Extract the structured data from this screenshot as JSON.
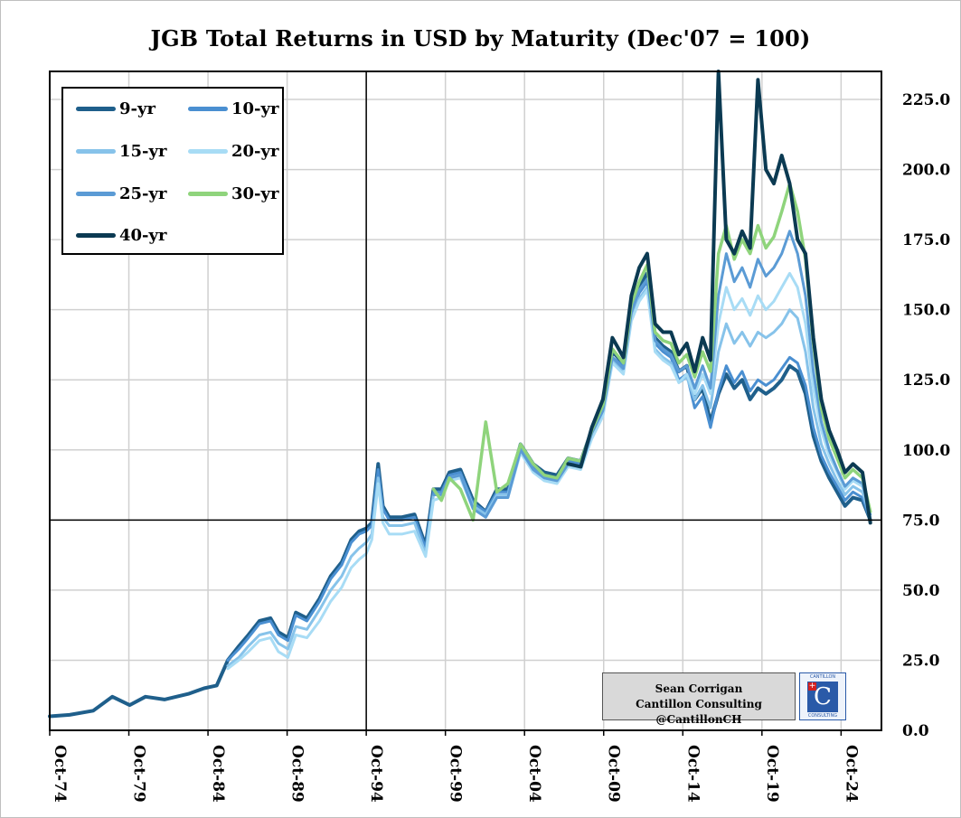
{
  "chart_data": {
    "type": "line",
    "title": "JGB Total Returns in USD by Maturity (Dec'07 = 100)",
    "xlabel": "",
    "ylabel": "",
    "ylim": [
      0,
      235
    ],
    "x_tick_labels": [
      "Oct-74",
      "Oct-79",
      "Oct-84",
      "Oct-89",
      "Oct-94",
      "Oct-99",
      "Oct-04",
      "Oct-09",
      "Oct-14",
      "Oct-19",
      "Oct-24"
    ],
    "x_tick_years": [
      1974.75,
      1979.75,
      1984.75,
      1989.75,
      1994.75,
      1999.75,
      2004.75,
      2009.75,
      2014.75,
      2019.75,
      2024.75
    ],
    "x_range": [
      1974.75,
      2027.3
    ],
    "y_ticks": [
      "0.0",
      "25.0",
      "50.0",
      "75.0",
      "100.0",
      "125.0",
      "150.0",
      "175.0",
      "200.0",
      "225.0"
    ],
    "y_tick_values": [
      0,
      25,
      50,
      75,
      100,
      125,
      150,
      175,
      200,
      225
    ],
    "grid": true,
    "reference_lines": {
      "x": 1994.75,
      "y": 75
    },
    "legend_position": "top-left",
    "series": [
      {
        "name": "9-yr",
        "color": "#1f5f8b",
        "width": 4,
        "x": [
          1974.75,
          1976,
          1977.5,
          1978.7,
          1979.8,
          1980.8,
          1982,
          1983.5,
          1984.5,
          1985.3,
          1986,
          1986.7,
          1987.3,
          1988,
          1988.7,
          1989.2,
          1989.8,
          1990.3,
          1991,
          1991.8,
          1992.5,
          1993.2,
          1993.8,
          1994.3,
          1994.75,
          1995.1,
          1995.5,
          1995.8,
          1996.2,
          1997,
          1997.8,
          1998.5,
          1999,
          1999.5,
          2000,
          2000.7,
          2001.5,
          2002.3,
          2003,
          2003.7,
          2004.5,
          2005.3,
          2006,
          2006.8,
          2007.5,
          2008.3,
          2009,
          2009.7,
          2010.3,
          2011,
          2011.5,
          2012,
          2012.5,
          2013,
          2013.5,
          2014,
          2014.5,
          2015,
          2015.5,
          2016,
          2016.5,
          2017,
          2017.5,
          2018,
          2018.5,
          2019,
          2019.5,
          2020,
          2020.5,
          2021,
          2021.5,
          2022,
          2022.5,
          2023,
          2023.5,
          2024,
          2024.5,
          2025,
          2025.5,
          2026.1,
          2026.6
        ],
        "y": [
          5,
          5.5,
          7,
          12,
          9,
          12,
          11,
          13,
          15,
          16,
          25,
          30,
          34,
          39,
          40,
          35,
          33,
          42,
          40,
          47,
          55,
          60,
          68,
          71,
          72,
          74,
          95,
          80,
          76,
          76,
          77,
          66,
          86,
          86,
          92,
          93,
          82,
          78,
          86,
          86,
          102,
          95,
          92,
          91,
          97,
          96,
          107,
          115,
          135,
          131,
          150,
          158,
          163,
          140,
          137,
          135,
          128,
          130,
          118,
          122,
          110,
          120,
          127,
          122,
          125,
          118,
          122,
          120,
          122,
          125,
          130,
          128,
          120,
          105,
          96,
          90,
          85,
          80,
          83,
          82,
          75
        ]
      },
      {
        "name": "10-yr",
        "color": "#4a8fd1",
        "width": 3,
        "x": [
          1986,
          1986.7,
          1987.3,
          1988,
          1988.7,
          1989.2,
          1989.8,
          1990.3,
          1991,
          1991.8,
          1992.5,
          1993.2,
          1993.8,
          1994.3,
          1994.75,
          1995.1,
          1995.5,
          1995.8,
          1996.2,
          1997,
          1997.8,
          1998.5,
          1999,
          1999.5,
          2000,
          2000.7,
          2001.5,
          2002.3,
          2003,
          2003.7,
          2004.5,
          2005.3,
          2006,
          2006.8,
          2007.5,
          2008.3,
          2009,
          2009.7,
          2010.3,
          2011,
          2011.5,
          2012,
          2012.5,
          2013,
          2013.5,
          2014,
          2014.5,
          2015,
          2015.5,
          2016,
          2016.5,
          2017,
          2017.5,
          2018,
          2018.5,
          2019,
          2019.5,
          2020,
          2020.5,
          2021,
          2021.5,
          2022,
          2022.5,
          2023,
          2023.5,
          2024,
          2024.5,
          2025,
          2025.5,
          2026.1,
          2026.6
        ],
        "y": [
          25,
          29,
          33,
          38,
          39,
          34,
          32,
          41,
          39,
          46,
          54,
          59,
          67,
          70,
          71,
          73,
          93,
          79,
          75,
          75,
          76,
          65,
          85,
          85,
          91,
          92,
          81,
          78,
          85,
          85,
          101,
          94,
          91,
          90,
          96,
          95,
          106,
          114,
          133,
          130,
          149,
          156,
          160,
          138,
          135,
          133,
          125,
          127,
          115,
          119,
          108,
          121,
          130,
          124,
          128,
          121,
          125,
          123,
          125,
          129,
          133,
          131,
          123,
          108,
          98,
          92,
          87,
          82,
          85,
          83,
          75
        ]
      },
      {
        "name": "15-yr",
        "color": "#87c3ea",
        "width": 3,
        "x": [
          1986,
          1986.7,
          1987.3,
          1988,
          1988.7,
          1989.2,
          1989.8,
          1990.3,
          1991,
          1991.8,
          1992.5,
          1993.2,
          1993.8,
          1994.3,
          1994.75,
          1995.1,
          1995.5,
          1995.8,
          1996.2,
          1997,
          1997.8,
          1998.5,
          1999,
          1999.5,
          2000,
          2000.7,
          2001.5,
          2002.3,
          2003,
          2003.7,
          2004.5,
          2005.3,
          2006,
          2006.8,
          2007.5,
          2008.3,
          2009,
          2009.7,
          2010.3,
          2011,
          2011.5,
          2012,
          2012.5,
          2013,
          2013.5,
          2014,
          2014.5,
          2015,
          2015.5,
          2016,
          2016.5,
          2017,
          2017.5,
          2018,
          2018.5,
          2019,
          2019.5,
          2020,
          2020.5,
          2021,
          2021.5,
          2022,
          2022.5,
          2023,
          2023.5,
          2024,
          2024.5,
          2025,
          2025.5,
          2026.1,
          2026.6
        ],
        "y": [
          23,
          26,
          30,
          34,
          35,
          31,
          29,
          37,
          36,
          43,
          50,
          55,
          62,
          65,
          67,
          70,
          90,
          76,
          73,
          73,
          74,
          63,
          84,
          84,
          90,
          91,
          80,
          77,
          84,
          84,
          100,
          93,
          90,
          89,
          95,
          94,
          105,
          113,
          132,
          128,
          147,
          154,
          158,
          136,
          133,
          131,
          124,
          126,
          118,
          123,
          115,
          135,
          145,
          138,
          142,
          137,
          142,
          140,
          142,
          145,
          150,
          147,
          135,
          115,
          102,
          95,
          89,
          84,
          87,
          85,
          76
        ]
      },
      {
        "name": "20-yr",
        "color": "#a8dcf5",
        "width": 3,
        "x": [
          1986,
          1986.7,
          1987.3,
          1988,
          1988.7,
          1989.2,
          1989.8,
          1990.3,
          1991,
          1991.8,
          1992.5,
          1993.2,
          1993.8,
          1994.3,
          1994.75,
          1995.1,
          1995.5,
          1995.8,
          1996.2,
          1997,
          1997.8,
          1998.5,
          1999,
          1999.5,
          2000,
          2000.7,
          2001.5,
          2002.3,
          2003,
          2003.7,
          2004.5,
          2005.3,
          2006,
          2006.8,
          2007.5,
          2008.3,
          2009,
          2009.7,
          2010.3,
          2011,
          2011.5,
          2012,
          2012.5,
          2013,
          2013.5,
          2014,
          2014.5,
          2015,
          2015.5,
          2016,
          2016.5,
          2017,
          2017.5,
          2018,
          2018.5,
          2019,
          2019.5,
          2020,
          2020.5,
          2021,
          2021.5,
          2022,
          2022.5,
          2023,
          2023.5,
          2024,
          2024.5,
          2025,
          2025.5,
          2026.1,
          2026.6
        ],
        "y": [
          22,
          25,
          28,
          32,
          33,
          28,
          26,
          34,
          33,
          39,
          46,
          51,
          58,
          61,
          63,
          68,
          88,
          74,
          70,
          70,
          71,
          62,
          82,
          83,
          89,
          90,
          79,
          76,
          83,
          83,
          99,
          92,
          89,
          88,
          94,
          93,
          104,
          112,
          131,
          127,
          146,
          153,
          157,
          135,
          132,
          130,
          124,
          127,
          120,
          127,
          120,
          145,
          158,
          150,
          154,
          148,
          155,
          150,
          153,
          158,
          163,
          158,
          145,
          122,
          107,
          98,
          92,
          86,
          89,
          87,
          77
        ]
      },
      {
        "name": "25-yr",
        "color": "#5b9bd5",
        "width": 3,
        "x": [
          1999,
          1999.5,
          2000,
          2000.7,
          2001.5,
          2002.3,
          2003,
          2003.7,
          2004.5,
          2005.3,
          2006,
          2006.8,
          2007.5,
          2008.3,
          2009,
          2009.7,
          2010.3,
          2011,
          2011.5,
          2012,
          2012.5,
          2013,
          2013.5,
          2014,
          2014.5,
          2015,
          2015.5,
          2016,
          2016.5,
          2017,
          2017.5,
          2018,
          2018.5,
          2019,
          2019.5,
          2020,
          2020.5,
          2021,
          2021.5,
          2022,
          2022.5,
          2023,
          2023.5,
          2024,
          2024.5,
          2025,
          2025.5,
          2026.1,
          2026.6
        ],
        "y": [
          84,
          84,
          90,
          91,
          79,
          76,
          83,
          83,
          100,
          93,
          90,
          89,
          95,
          94,
          106,
          114,
          133,
          129,
          149,
          157,
          161,
          139,
          136,
          134,
          128,
          130,
          122,
          130,
          122,
          155,
          170,
          160,
          165,
          158,
          168,
          162,
          165,
          170,
          178,
          170,
          155,
          128,
          110,
          100,
          93,
          87,
          90,
          88,
          77
        ]
      },
      {
        "name": "30-yr",
        "color": "#8fd47c",
        "width": 3.5,
        "x": [
          1999,
          1999.5,
          2000,
          2000.7,
          2001.5,
          2002.3,
          2003,
          2003.7,
          2004.5,
          2005.3,
          2006,
          2006.8,
          2007.5,
          2008.3,
          2009,
          2009.7,
          2010.3,
          2011,
          2011.5,
          2012,
          2012.5,
          2013,
          2013.5,
          2014,
          2014.5,
          2015,
          2015.5,
          2016,
          2016.5,
          2017,
          2017.5,
          2018,
          2018.5,
          2019,
          2019.5,
          2020,
          2020.5,
          2021,
          2021.5,
          2022,
          2022.5,
          2023,
          2023.5,
          2024,
          2024.5,
          2025,
          2025.5,
          2026.1,
          2026.6
        ],
        "y": [
          86,
          82,
          90,
          86,
          75,
          110,
          85,
          88,
          102,
          95,
          91,
          90,
          97,
          96,
          107,
          116,
          136,
          131,
          152,
          160,
          166,
          142,
          139,
          138,
          131,
          134,
          126,
          135,
          128,
          170,
          180,
          168,
          175,
          170,
          180,
          172,
          176,
          185,
          195,
          185,
          168,
          138,
          115,
          104,
          97,
          90,
          93,
          90,
          78
        ]
      },
      {
        "name": "40-yr",
        "color": "#0b3a52",
        "width": 4,
        "x": [
          2007.5,
          2008.3,
          2009,
          2009.7,
          2010.3,
          2011,
          2011.5,
          2012,
          2012.5,
          2013,
          2013.5,
          2014,
          2014.5,
          2015,
          2015.5,
          2016,
          2016.5,
          2017,
          2017.5,
          2018,
          2018.5,
          2019,
          2019.5,
          2020,
          2020.5,
          2021,
          2021.5,
          2022,
          2022.5,
          2023,
          2023.5,
          2024,
          2024.5,
          2025,
          2025.5,
          2026.1,
          2026.6
        ],
        "y": [
          95,
          94,
          108,
          118,
          140,
          133,
          155,
          165,
          170,
          145,
          142,
          142,
          134,
          138,
          128,
          140,
          132,
          235,
          175,
          170,
          178,
          172,
          232,
          200,
          195,
          205,
          195,
          175,
          170,
          140,
          118,
          107,
          100,
          92,
          95,
          92,
          74
        ]
      }
    ]
  },
  "legend": {
    "items": [
      {
        "label": "9-yr",
        "color": "#1f5f8b"
      },
      {
        "label": "10-yr",
        "color": "#4a8fd1"
      },
      {
        "label": "15-yr",
        "color": "#87c3ea"
      },
      {
        "label": "20-yr",
        "color": "#a8dcf5"
      },
      {
        "label": "25-yr",
        "color": "#5b9bd5"
      },
      {
        "label": "30-yr",
        "color": "#8fd47c"
      },
      {
        "label": "40-yr",
        "color": "#0b3a52"
      }
    ]
  },
  "credit": {
    "line1": "Sean Corrigan",
    "line2": "Cantillon Consulting @CantillonCH",
    "logo_top": "CANTILLON",
    "logo_letter": "C",
    "logo_bottom": "CONSULTING"
  }
}
